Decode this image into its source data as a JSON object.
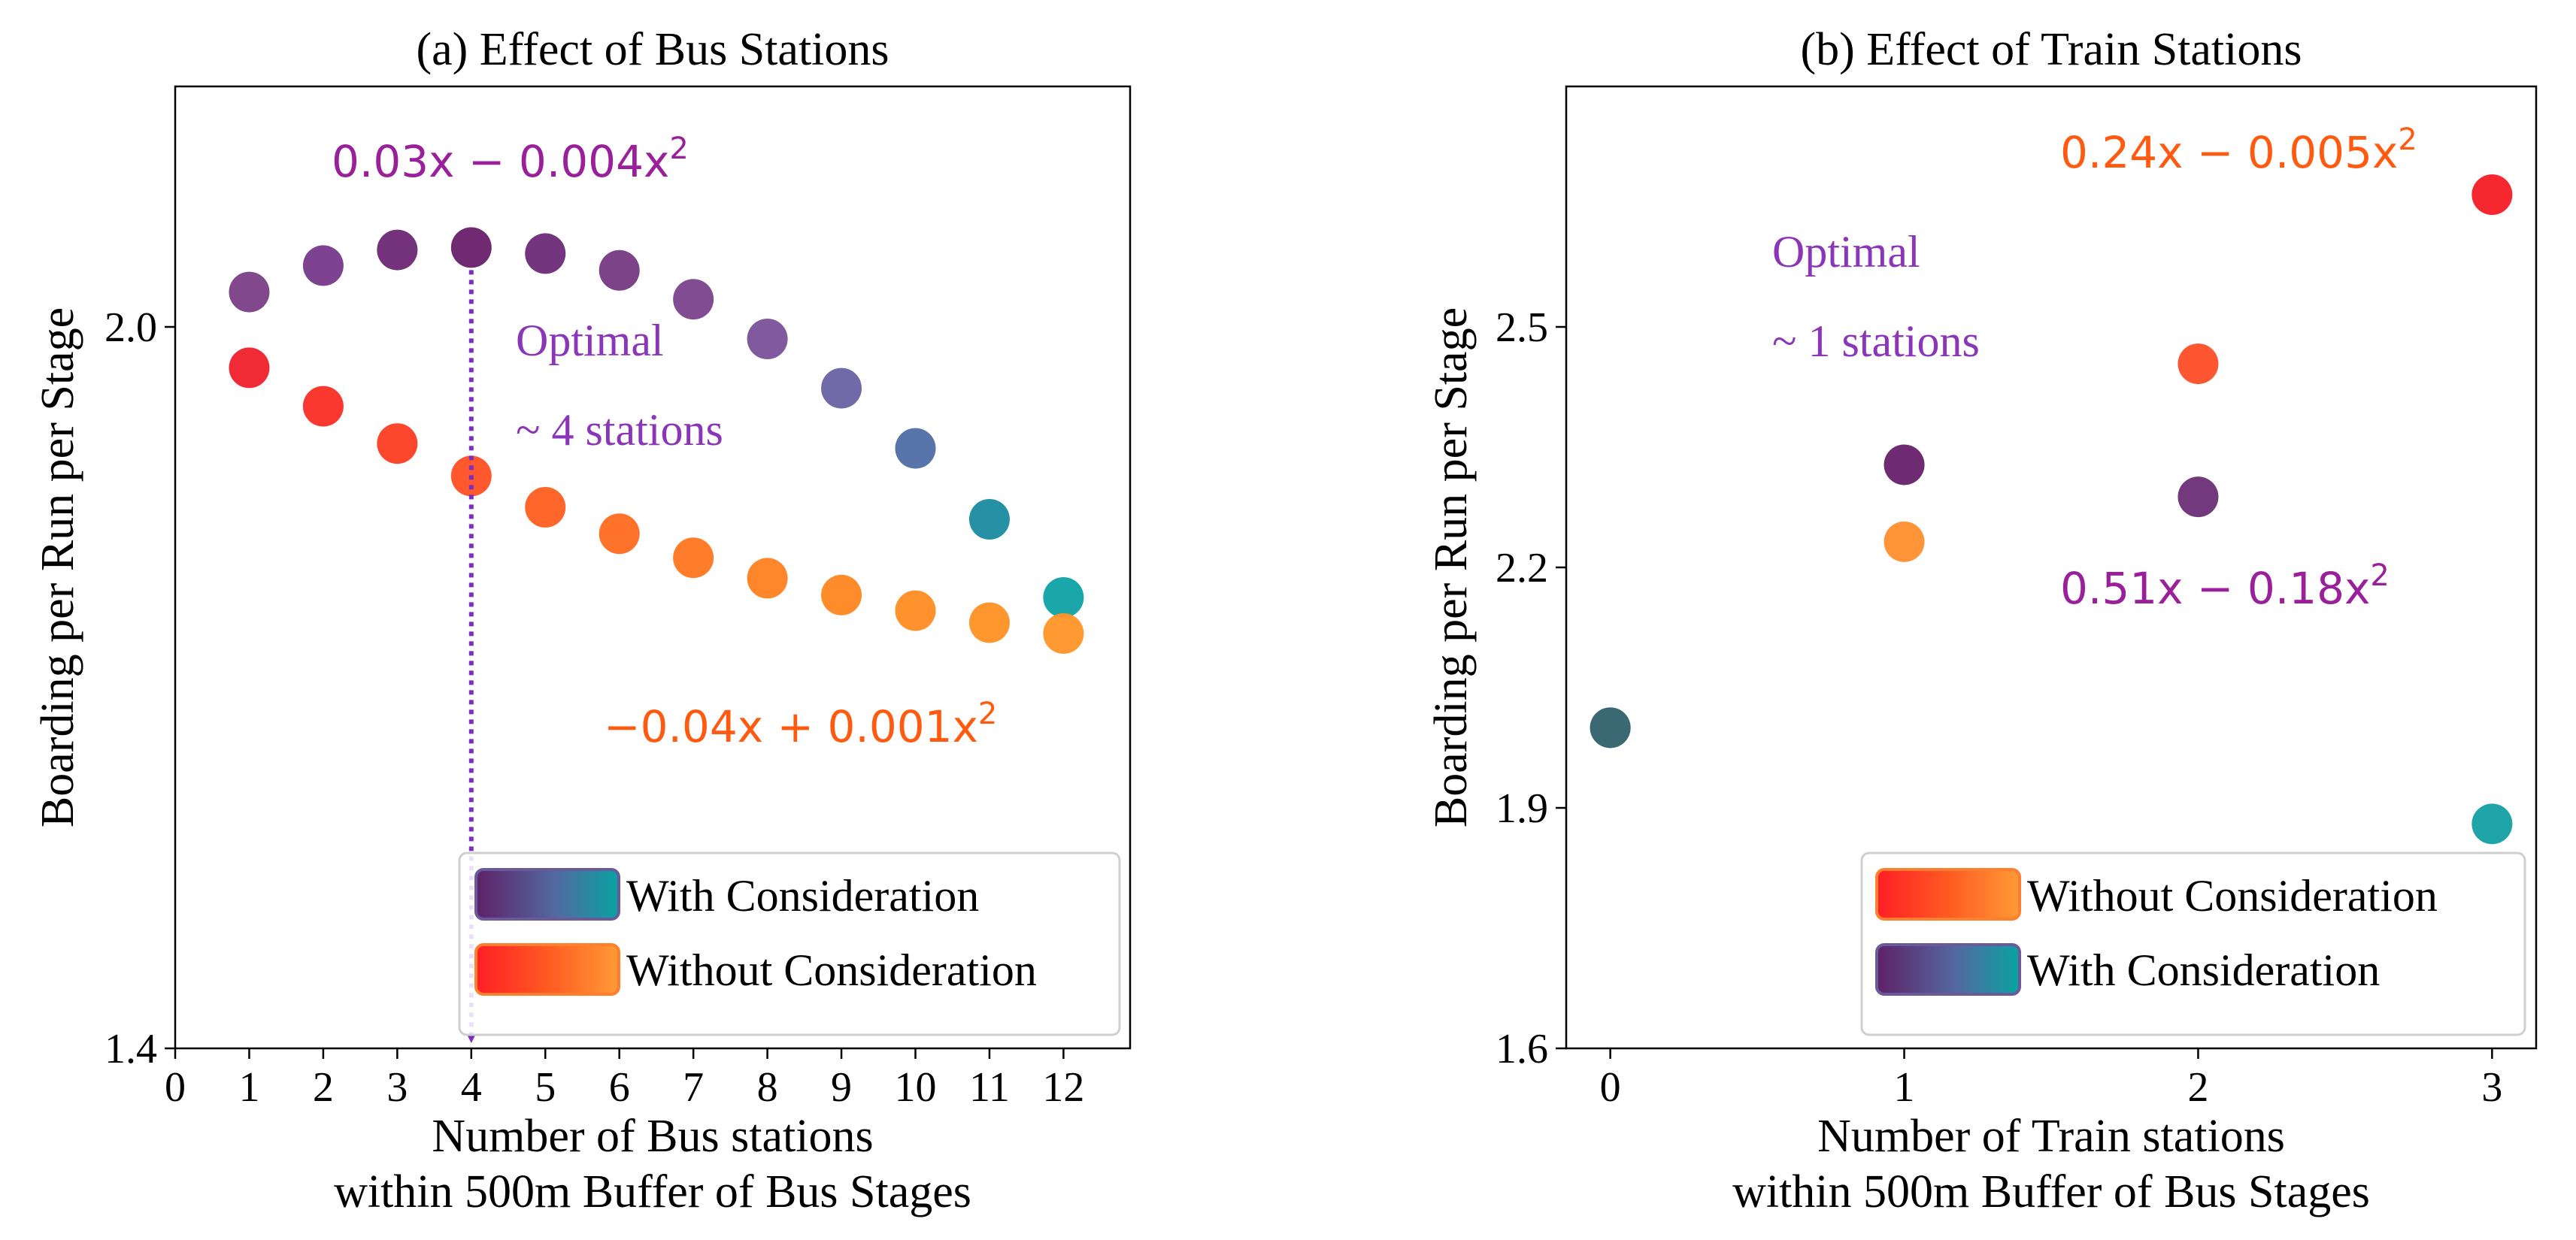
{
  "chart_data": [
    {
      "type": "scatter",
      "title": "(a) Effect of Bus Stations",
      "xlabel_lines": [
        "Number of Bus stations",
        "within 500m Buffer of Bus Stages"
      ],
      "ylabel": "Boarding per Run per Stage",
      "xlim": [
        0,
        12.9
      ],
      "ylim": [
        1.4,
        2.2
      ],
      "x_ticks": [
        0,
        1,
        2,
        3,
        4,
        5,
        6,
        7,
        8,
        9,
        10,
        11,
        12
      ],
      "y_ticks": [
        1.4,
        2.0
      ],
      "y_tick_labels": [
        "1.4",
        "2.0"
      ],
      "series": [
        {
          "name": "With Consideration",
          "x": [
            1,
            2,
            3,
            4,
            5,
            6,
            7,
            8,
            9,
            10,
            11,
            12
          ],
          "y": [
            2.029,
            2.051,
            2.064,
            2.066,
            2.061,
            2.047,
            2.023,
            1.99,
            1.949,
            1.899,
            1.84,
            1.775
          ],
          "colors": [
            "#7a3f86",
            "#77398a",
            "#6b2774",
            "#671f6a",
            "#6c2a77",
            "#753982",
            "#7a428b",
            "#79509a",
            "#6863a3",
            "#4e6ea5",
            "#1a8ba0",
            "#0fa2a4"
          ]
        },
        {
          "name": "Without Consideration",
          "x": [
            1,
            2,
            3,
            4,
            5,
            6,
            7,
            8,
            9,
            10,
            11,
            12
          ],
          "y": [
            1.966,
            1.934,
            1.903,
            1.876,
            1.85,
            1.828,
            1.808,
            1.791,
            1.777,
            1.764,
            1.754,
            1.745
          ],
          "colors": [
            "#f0202a",
            "#fb2d25",
            "#fd3d22",
            "#ff4f23",
            "#ff5e1f",
            "#ff6a1f",
            "#ff7520",
            "#ff7f20",
            "#ff8620",
            "#ff8c22",
            "#ff9023",
            "#ff9426"
          ]
        }
      ],
      "annotations": {
        "with_formula": "0.03x − 0.004x²",
        "without_formula": "−0.04x + 0.001x²",
        "optimal_line1": "Optimal",
        "optimal_line2": "~ 4 stations",
        "optimal_x": 4
      },
      "legend": {
        "placement": "lower-right",
        "entries": [
          "With Consideration",
          "Without Consideration"
        ]
      }
    },
    {
      "type": "scatter",
      "title": "(b) Effect of Train Stations",
      "xlabel_lines": [
        "Number of Train stations",
        "within 500m Buffer of Bus Stages"
      ],
      "ylabel": "Boarding per Run per Stage",
      "xlim": [
        -0.15,
        3.15
      ],
      "ylim": [
        1.6,
        2.8
      ],
      "x_ticks": [
        0,
        1,
        2,
        3
      ],
      "y_ticks": [
        1.6,
        1.9,
        2.2,
        2.5
      ],
      "y_tick_labels": [
        "1.6",
        "1.9",
        "2.2",
        "2.5"
      ],
      "series": [
        {
          "name": "Without Consideration",
          "x": [
            0,
            1,
            2,
            3
          ],
          "y": [
            2.0,
            2.232,
            2.454,
            2.665
          ],
          "colors": [
            "#3b6873",
            "#ff8e2e",
            "#ff4d27",
            "#f51c24"
          ]
        },
        {
          "name": "With Consideration",
          "x": [
            0,
            1,
            2,
            3
          ],
          "y": [
            2.0,
            2.328,
            2.288,
            1.88
          ],
          "colors": [
            "#3b6873",
            "#672069",
            "#6c2e76",
            "#13a0a2"
          ]
        }
      ],
      "annotations": {
        "without_formula": "0.24x − 0.005x²",
        "with_formula": "0.51x − 0.18x²",
        "optimal_line1": "Optimal",
        "optimal_line2": "~ 1 stations"
      },
      "legend": {
        "placement": "lower-right",
        "entries": [
          "Without Consideration",
          "With Consideration"
        ]
      }
    }
  ]
}
